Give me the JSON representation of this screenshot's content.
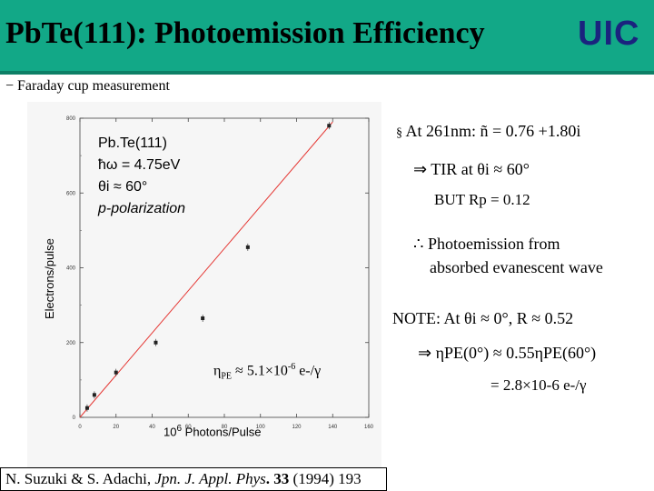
{
  "header": {
    "title": "PbTe(111): Photoemission Efficiency",
    "logo": "UIC",
    "subtitle": "− Faraday cup measurement"
  },
  "plot": {
    "ylabel": "Electrons/pulse",
    "xlabel_exp": "6",
    "xlabel_base": "10",
    "xlabel_rest": " Photons/Pulse",
    "label_lines": [
      "Pb.Te(111)",
      "ħω = 4.75eV",
      "θi ≈ 60°",
      "p-polarization"
    ],
    "efficiency": {
      "prefix": "η",
      "sub": "PE",
      "mid": " ≈ 5.1×10",
      "exp": "-6",
      "rest": " e-/γ"
    }
  },
  "chart_data": {
    "type": "scatter",
    "x": [
      4,
      8,
      20,
      42,
      68,
      93,
      138
    ],
    "y": [
      25,
      60,
      120,
      200,
      265,
      455,
      780
    ],
    "xlim": [
      0,
      160
    ],
    "ylim": [
      0,
      800
    ],
    "xticks": [
      "0",
      "20",
      "40",
      "60",
      "80",
      "100",
      "120",
      "140",
      "160"
    ],
    "yticks": [
      "0",
      "200",
      "400",
      "600",
      "800"
    ],
    "fit_line": {
      "x": [
        0,
        140
      ],
      "y": [
        0,
        790
      ]
    },
    "colors": {
      "points": "#222222",
      "fit": "#e53935"
    }
  },
  "right": {
    "line1_bullet": "§",
    "line1_text": "At 261nm: ñ = 0.76 +1.80i",
    "line2_arrow": "⇒",
    "line2_text": "TIR at θi ≈ 60°",
    "line3_text": "BUT Rp = 0.12",
    "line4_sym": "∴",
    "line4_text": "Photoemission from",
    "line5_text": "absorbed evanescent wave",
    "line6_text": "NOTE: At θi ≈ 0°, R ≈ 0.52",
    "line7_text": "⇒ ηPE(0°) ≈ 0.55ηPE(60°)",
    "line8_text": "= 2.8×10-6 e-/γ"
  },
  "citation": {
    "authors": "N. Suzuki & S. Adachi, ",
    "journal": "Jpn. J. Appl. Phys",
    "volume": ". 33 ",
    "pages": "(1994) 193"
  }
}
